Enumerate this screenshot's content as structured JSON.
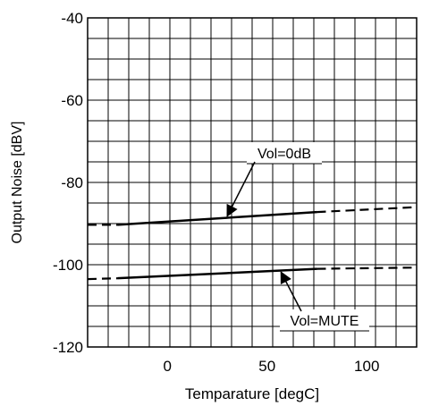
{
  "chart_data": {
    "type": "line",
    "xlabel": "Temparature   [degC]",
    "ylabel": "Output Noise   [dBV]",
    "xlim": [
      -40,
      125
    ],
    "ylim": [
      -120,
      -40
    ],
    "x_ticks": [
      0,
      50,
      100
    ],
    "y_ticks": [
      -120,
      -100,
      -80,
      -60,
      -40
    ],
    "x_tick_labels": [
      "0",
      "50",
      "100"
    ],
    "y_tick_labels": [
      "-120",
      "-100",
      "-80",
      "-60",
      "-40"
    ],
    "grid": true,
    "series": [
      {
        "name": "Vol=0dB",
        "solid": {
          "x": [
            -25,
            75
          ],
          "y": [
            -90.3,
            -87.2
          ]
        },
        "dashed": [
          {
            "x": [
              -40,
              -25
            ],
            "y": [
              -90.3,
              -90.3
            ]
          },
          {
            "x": [
              75,
              125
            ],
            "y": [
              -87.2,
              -86.0
            ]
          }
        ],
        "label_anchor": {
          "x": 30,
          "y": -88.2
        }
      },
      {
        "name": "Vol=MUTE",
        "solid": {
          "x": [
            -25,
            75
          ],
          "y": [
            -103.3,
            -101.0
          ]
        },
        "dashed": [
          {
            "x": [
              -40,
              -25
            ],
            "y": [
              -103.5,
              -103.3
            ]
          },
          {
            "x": [
              75,
              125
            ],
            "y": [
              -101.0,
              -100.7
            ]
          }
        ],
        "label_anchor": {
          "x": 57,
          "y": -101.8
        }
      }
    ]
  }
}
